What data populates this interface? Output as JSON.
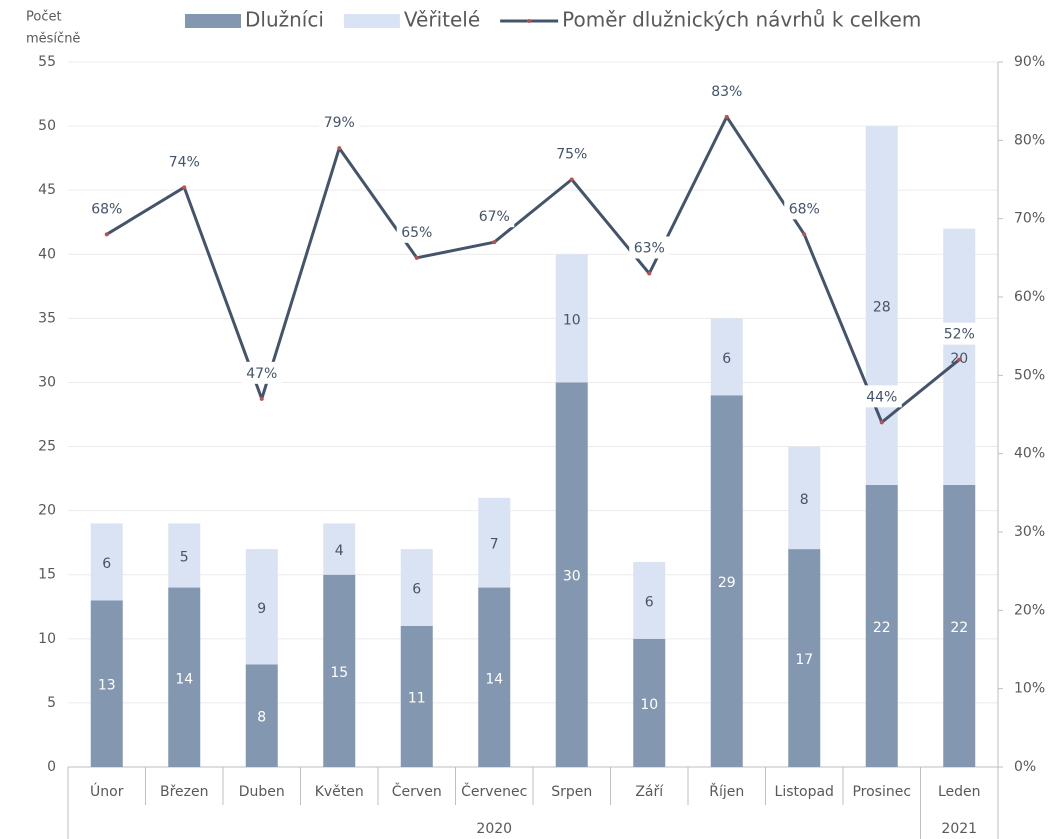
{
  "chart_data": {
    "type": "bar",
    "stacked": true,
    "ylabel_lines": [
      "Počet",
      "měsíčně"
    ],
    "categories": [
      "Únor",
      "Březen",
      "Duben",
      "Květen",
      "Červen",
      "Červenec",
      "Srpen",
      "Září",
      "Říjen",
      "Listopad",
      "Prosinec",
      "Leden"
    ],
    "category_groups": [
      {
        "label": "2020",
        "count": 11
      },
      {
        "label": "2021",
        "count": 1
      }
    ],
    "series": [
      {
        "name": "Dlužníci",
        "color": "#8497b0",
        "values": [
          13,
          14,
          8,
          15,
          11,
          14,
          30,
          10,
          29,
          17,
          22,
          22
        ]
      },
      {
        "name": "Věřitelé",
        "color": "#dae3f3",
        "values": [
          6,
          5,
          9,
          4,
          6,
          7,
          10,
          6,
          6,
          8,
          28,
          20
        ]
      },
      {
        "name": "Poměr dlužnických návrhů k celkem",
        "type": "line",
        "axis": "y2",
        "color": "#44546a",
        "marker_color": "#c0504d",
        "values": [
          68,
          74,
          47,
          79,
          65,
          67,
          75,
          63,
          83,
          68,
          44,
          52
        ],
        "value_labels": [
          "68%",
          "74%",
          "47%",
          "79%",
          "65%",
          "67%",
          "75%",
          "63%",
          "83%",
          "68%",
          "44%",
          "52%"
        ]
      }
    ],
    "ylim": [
      0,
      55
    ],
    "yticks": [
      0,
      5,
      10,
      15,
      20,
      25,
      30,
      35,
      40,
      45,
      50,
      55
    ],
    "y2lim": [
      0,
      90
    ],
    "y2ticks": [
      {
        "value": 0,
        "label": "0%"
      },
      {
        "value": 10,
        "label": "10%"
      },
      {
        "value": 20,
        "label": "20%"
      },
      {
        "value": 30,
        "label": "30%"
      },
      {
        "value": 40,
        "label": "40%"
      },
      {
        "value": 50,
        "label": "50%"
      },
      {
        "value": 60,
        "label": "60%"
      },
      {
        "value": 70,
        "label": "70%"
      },
      {
        "value": 80,
        "label": "80%"
      },
      {
        "value": 90,
        "label": "90%"
      }
    ],
    "grid": true,
    "legend": "top"
  }
}
